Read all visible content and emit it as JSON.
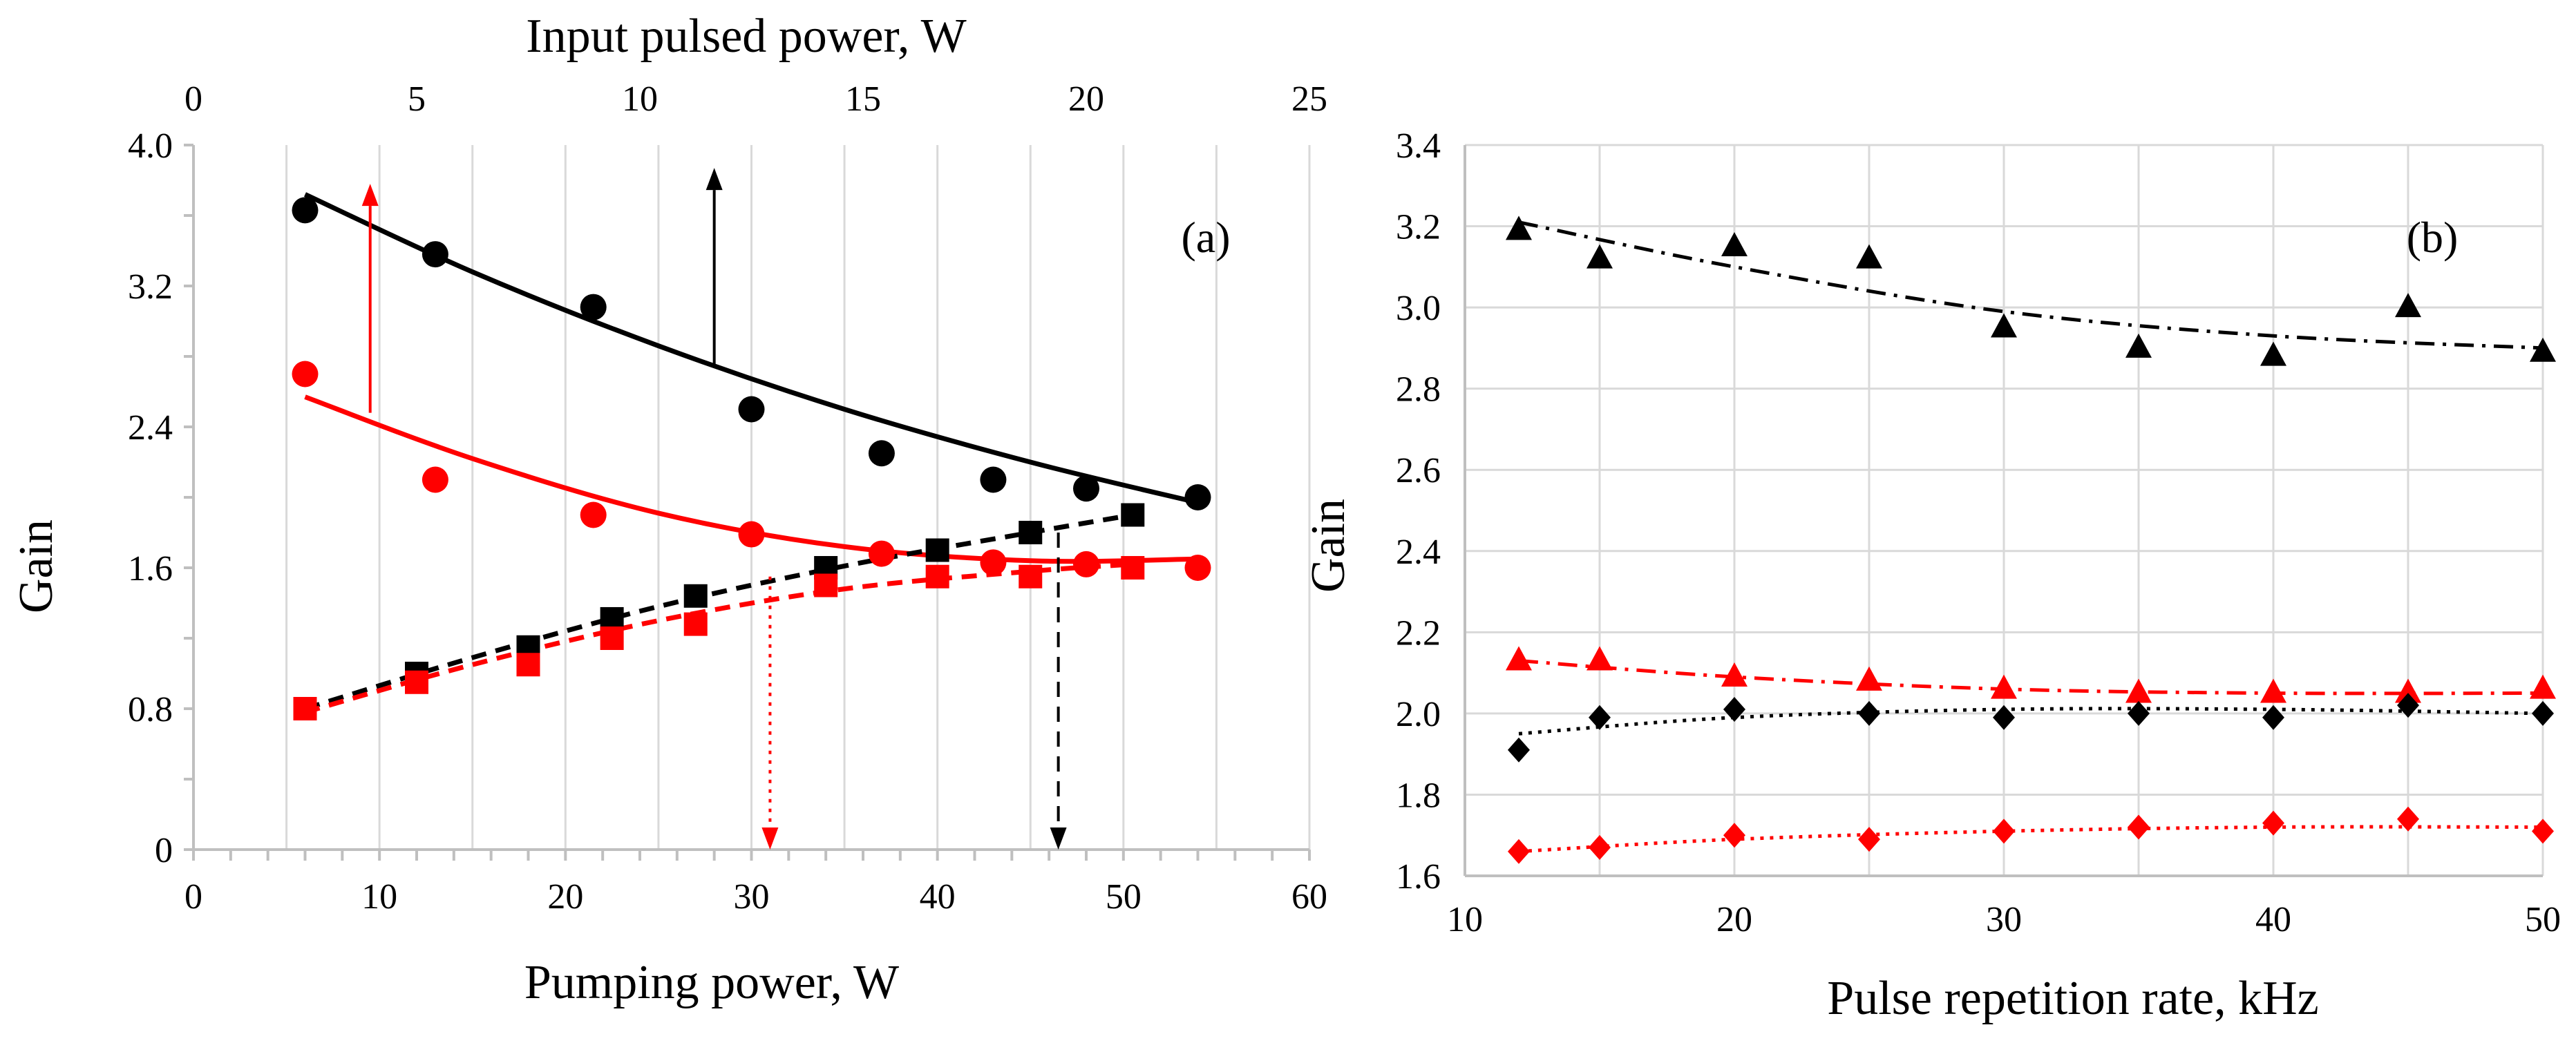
{
  "colors": {
    "black": "#000000",
    "red": "#ff0000",
    "grid": "#d9d9d9",
    "axis": "#bfbfbf"
  },
  "chart_data": [
    {
      "id": "a",
      "type": "scatter",
      "panel_label": "(a)",
      "ylabel": "Gain",
      "xlabel_bottom": "Pumping power, W",
      "xlabel_top": "Input pulsed power, W",
      "xlim_bottom": [
        0,
        60
      ],
      "xlim_top": [
        0,
        25
      ],
      "ylim": [
        0,
        4.0
      ],
      "xticks_bottom": [
        "0",
        "10",
        "20",
        "30",
        "40",
        "50",
        "60"
      ],
      "xticks_top": [
        "0",
        "5",
        "10",
        "15",
        "20",
        "25"
      ],
      "yticks": [
        "0",
        "0.8",
        "1.6",
        "2.4",
        "3.2",
        "4.0"
      ],
      "grid": "vertical",
      "series": [
        {
          "name": "black circles",
          "marker": "circle",
          "color": "#000000",
          "x": [
            6,
            13,
            21.5,
            30,
            37,
            43,
            48,
            54
          ],
          "y": [
            3.63,
            3.38,
            3.08,
            2.5,
            2.25,
            2.1,
            2.05,
            2.0
          ],
          "fit": {
            "style": "solid",
            "x": [
              6,
              15,
              25,
              35,
              45,
              54
            ],
            "y": [
              3.72,
              3.28,
              2.86,
              2.5,
              2.2,
              1.97
            ]
          }
        },
        {
          "name": "red circles",
          "marker": "circle",
          "color": "#ff0000",
          "x": [
            6,
            13,
            21.5,
            30,
            37,
            43,
            48,
            54
          ],
          "y": [
            2.7,
            2.1,
            1.9,
            1.79,
            1.68,
            1.63,
            1.62,
            1.6
          ],
          "fit": {
            "style": "solid",
            "x": [
              6,
              15,
              25,
              35,
              45,
              54
            ],
            "y": [
              2.57,
              2.22,
              1.91,
              1.72,
              1.64,
              1.65
            ]
          }
        },
        {
          "name": "black squares",
          "marker": "square",
          "color": "#000000",
          "x": [
            6,
            12,
            18,
            22.5,
            27,
            34,
            40,
            45,
            50.5
          ],
          "y": [
            0.8,
            1.0,
            1.15,
            1.31,
            1.44,
            1.6,
            1.7,
            1.8,
            1.9
          ],
          "fit": {
            "style": "dashed",
            "x": [
              6,
              15,
              25,
              35,
              45,
              50.5
            ],
            "y": [
              0.8,
              1.09,
              1.38,
              1.61,
              1.8,
              1.9
            ]
          }
        },
        {
          "name": "red squares",
          "marker": "square",
          "color": "#ff0000",
          "x": [
            6,
            12,
            18,
            22.5,
            27,
            34,
            40,
            45,
            50.5
          ],
          "y": [
            0.8,
            0.95,
            1.05,
            1.2,
            1.28,
            1.5,
            1.55,
            1.55,
            1.6
          ],
          "fit": {
            "style": "dashed",
            "x": [
              6,
              15,
              25,
              35,
              45,
              50.5
            ],
            "y": [
              0.78,
              1.05,
              1.3,
              1.48,
              1.58,
              1.62
            ]
          }
        }
      ],
      "arrows": [
        {
          "color": "#ff0000",
          "style": "solid",
          "from": [
            9.5,
            2.48
          ],
          "to": [
            9.5,
            3.78
          ]
        },
        {
          "color": "#000000",
          "style": "solid",
          "from": [
            28,
            2.75
          ],
          "to": [
            28,
            3.87
          ]
        },
        {
          "color": "#ff0000",
          "style": "dotted",
          "from": [
            31,
            1.55
          ],
          "to": [
            31,
            0
          ]
        },
        {
          "color": "#000000",
          "style": "dashed",
          "from": [
            46.5,
            1.8
          ],
          "to": [
            46.5,
            0
          ]
        }
      ]
    },
    {
      "id": "b",
      "type": "scatter",
      "panel_label": "(b)",
      "ylabel": "Gain",
      "xlabel": "Pulse repetition rate, kHz",
      "xlim": [
        10,
        50
      ],
      "ylim": [
        1.6,
        3.4
      ],
      "xticks": [
        "10",
        "20",
        "30",
        "40",
        "50"
      ],
      "yticks": [
        "1.6",
        "1.8",
        "2.0",
        "2.2",
        "2.4",
        "2.6",
        "2.8",
        "3.0",
        "3.2",
        "3.4"
      ],
      "grid": "both",
      "series": [
        {
          "name": "black triangles",
          "marker": "triangle",
          "color": "#000000",
          "x": [
            12,
            15,
            20,
            25,
            30,
            35,
            40,
            45,
            50
          ],
          "y": [
            3.19,
            3.12,
            3.15,
            3.12,
            2.95,
            2.9,
            2.88,
            3.0,
            2.89
          ],
          "fit": {
            "style": "dashdot",
            "x": [
              12,
              20,
              30,
              40,
              50
            ],
            "y": [
              3.21,
              3.1,
              2.99,
              2.93,
              2.9
            ]
          }
        },
        {
          "name": "red triangles",
          "marker": "triangle",
          "color": "#ff0000",
          "x": [
            12,
            15,
            20,
            25,
            30,
            35,
            40,
            45,
            50
          ],
          "y": [
            2.13,
            2.13,
            2.09,
            2.08,
            2.06,
            2.05,
            2.05,
            2.05,
            2.06
          ],
          "fit": {
            "style": "dashdot",
            "x": [
              12,
              20,
              30,
              40,
              50
            ],
            "y": [
              2.13,
              2.09,
              2.06,
              2.05,
              2.05
            ]
          }
        },
        {
          "name": "black diamonds",
          "marker": "diamond",
          "color": "#000000",
          "x": [
            12,
            15,
            20,
            25,
            30,
            35,
            40,
            45,
            50
          ],
          "y": [
            1.91,
            1.99,
            2.01,
            2.0,
            1.99,
            2.0,
            1.99,
            2.02,
            2.0
          ],
          "fit": {
            "style": "dotted",
            "x": [
              12,
              20,
              30,
              40,
              50
            ],
            "y": [
              1.95,
              1.99,
              2.01,
              2.01,
              2.0
            ]
          }
        },
        {
          "name": "red diamonds",
          "marker": "diamond",
          "color": "#ff0000",
          "x": [
            12,
            15,
            20,
            25,
            30,
            35,
            40,
            45,
            50
          ],
          "y": [
            1.66,
            1.67,
            1.7,
            1.69,
            1.71,
            1.72,
            1.73,
            1.74,
            1.71
          ],
          "fit": {
            "style": "dotted",
            "x": [
              12,
              20,
              30,
              40,
              50
            ],
            "y": [
              1.66,
              1.69,
              1.71,
              1.72,
              1.72
            ]
          }
        }
      ]
    }
  ]
}
